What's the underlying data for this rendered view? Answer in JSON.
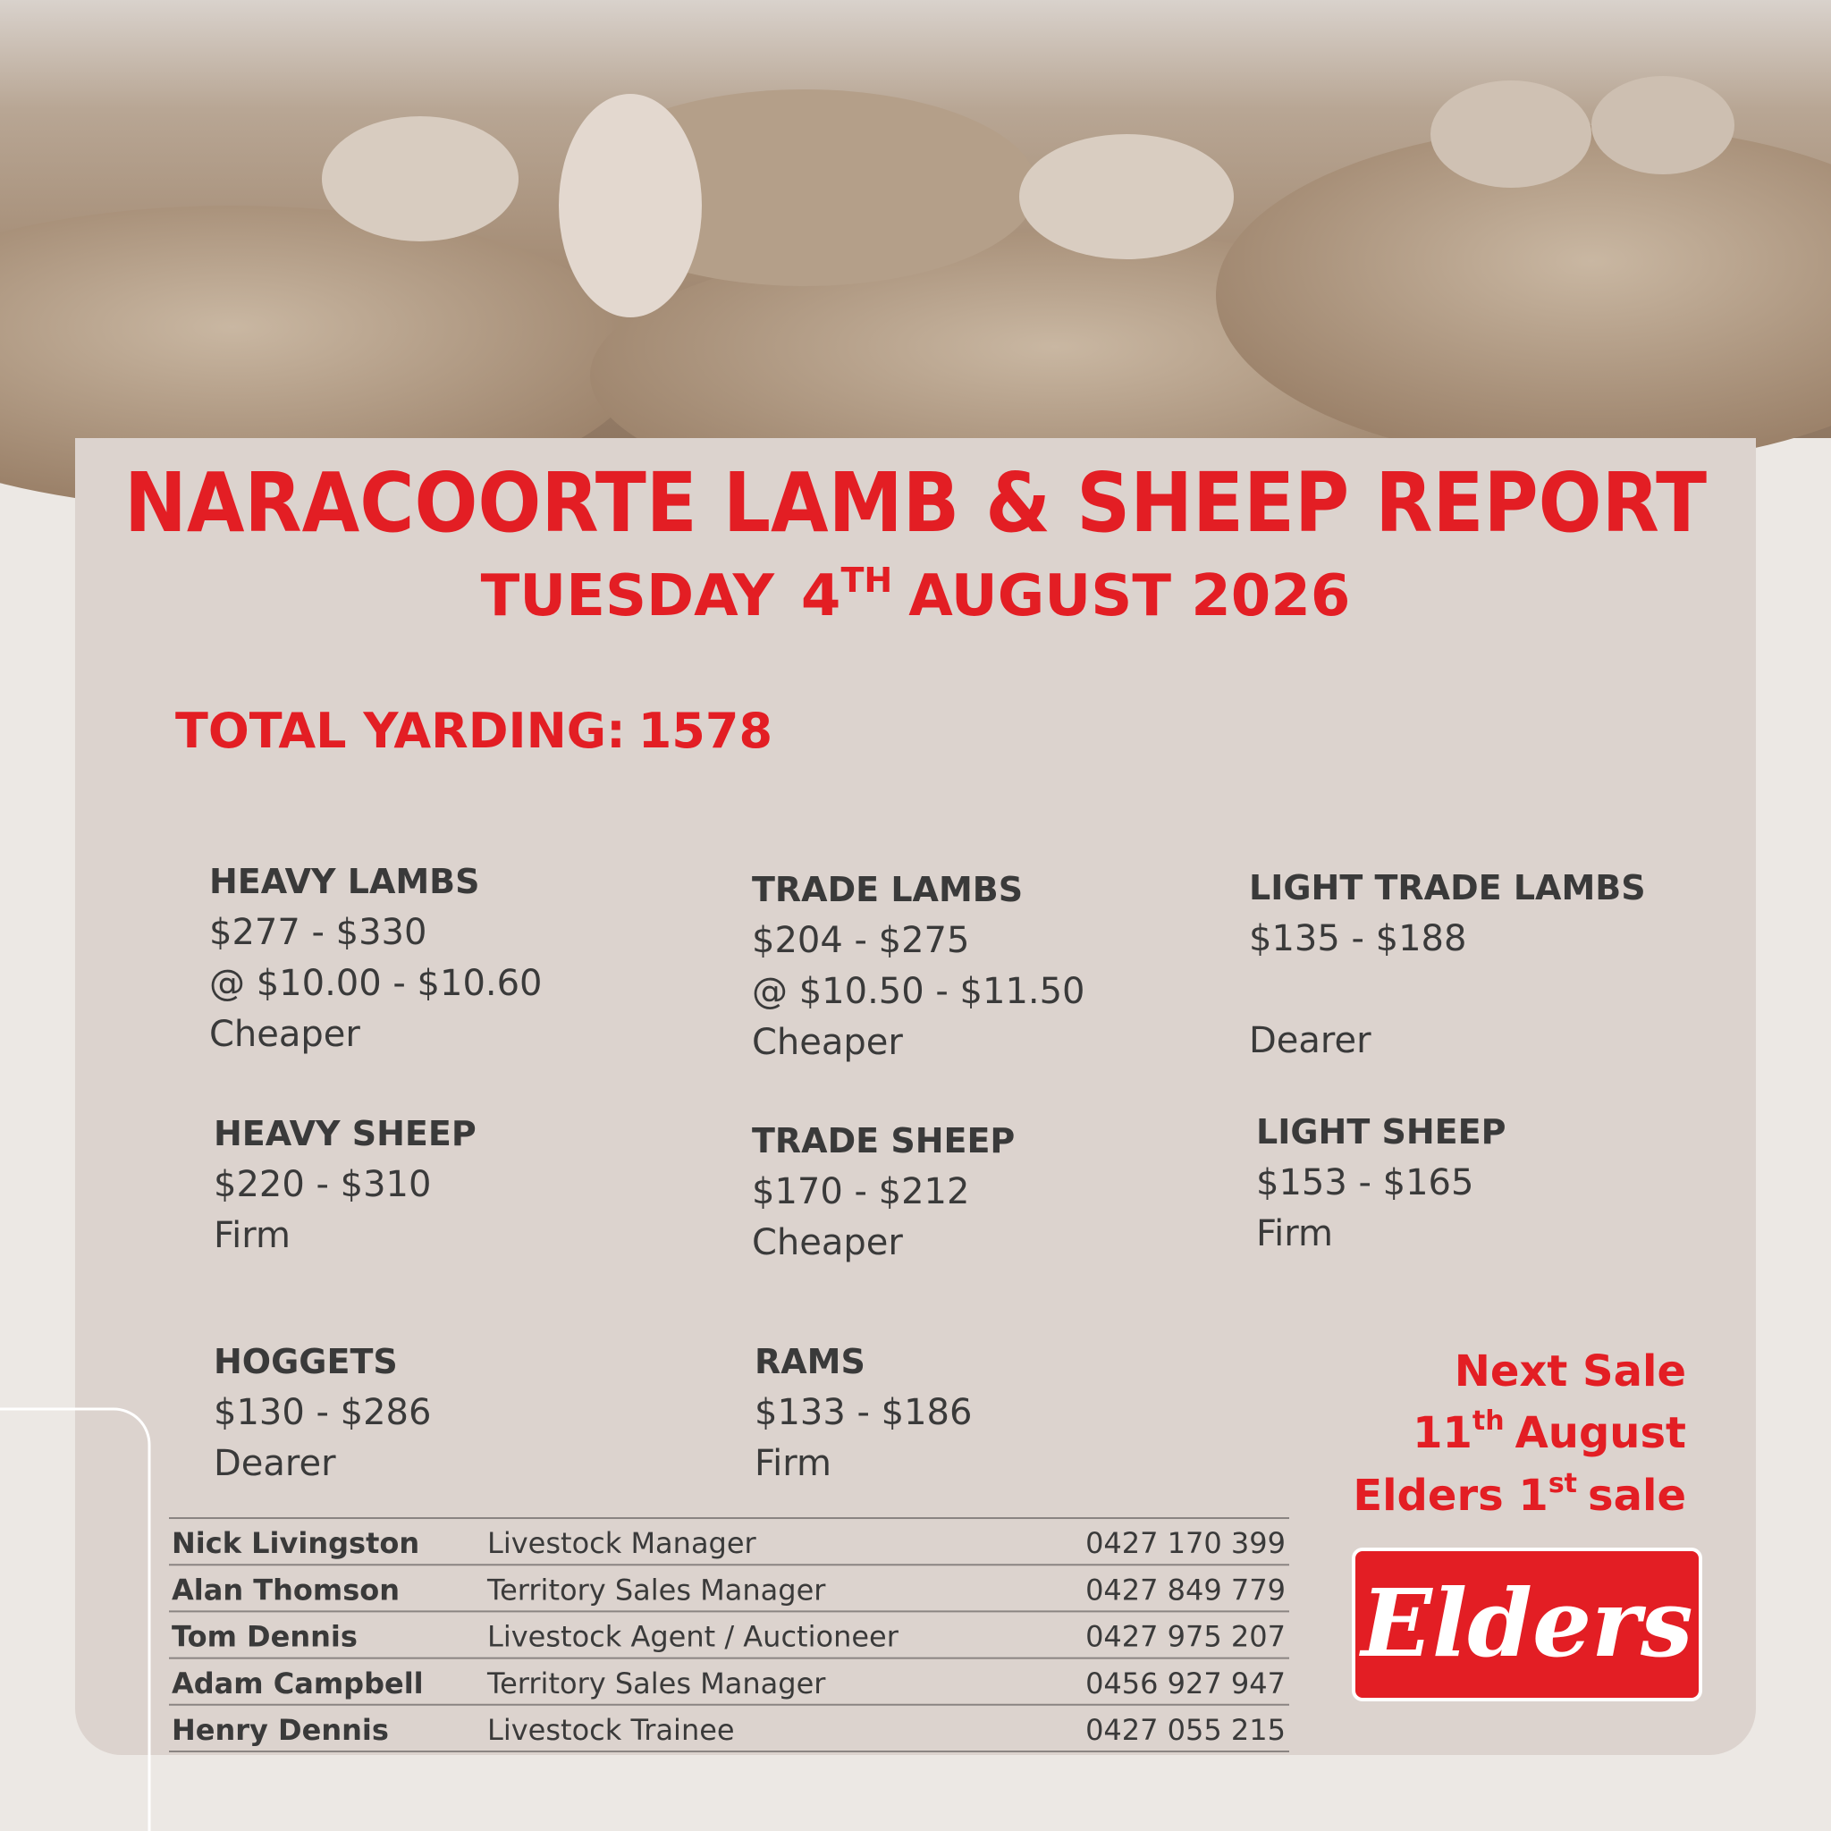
{
  "header": {
    "title": "NARACOORTE LAMB & SHEEP REPORT",
    "date": {
      "day": "TUESDAY",
      "num": "4",
      "suffix": "TH",
      "rest": "AUGUST 2026"
    }
  },
  "total_yarding": {
    "label": "TOTAL YARDING:",
    "value": "1578"
  },
  "categories": [
    {
      "name": "HEAVY LAMBS",
      "price": "$277 - $330",
      "rate": "@ $10.00 - $10.60",
      "trend": "Cheaper"
    },
    {
      "name": "TRADE LAMBS",
      "price": "$204 - $275",
      "rate": "@ $10.50 - $11.50",
      "trend": "Cheaper"
    },
    {
      "name": "LIGHT TRADE LAMBS",
      "price": "$135 - $188",
      "trend": "Dearer"
    },
    {
      "name": "HEAVY SHEEP",
      "price": "$220 - $310",
      "trend": "Firm"
    },
    {
      "name": "TRADE SHEEP",
      "price": "$170 - $212",
      "trend": "Cheaper"
    },
    {
      "name": "LIGHT SHEEP",
      "price": "$153 - $165",
      "trend": "Firm"
    },
    {
      "name": "HOGGETS",
      "price": "$130 - $286",
      "trend": "Dearer"
    },
    {
      "name": "RAMS",
      "price": "$133 - $186",
      "trend": "Firm"
    }
  ],
  "next_sale": {
    "heading": "Next Sale",
    "date": {
      "num": "11",
      "suffix": "th",
      "rest": "August"
    },
    "note": {
      "pre": "Elders 1",
      "suffix": "st",
      "rest": "sale"
    }
  },
  "contacts": [
    [
      "Nick Livingston",
      "Livestock Manager",
      "0427 170 399"
    ],
    [
      "Alan Thomson",
      "Territory Sales Manager",
      "0427 849 779"
    ],
    [
      "Tom Dennis",
      "Livestock Agent / Auctioneer",
      "0427 975 207"
    ],
    [
      "Adam Campbell",
      "Territory Sales Manager",
      "0456 927 947"
    ],
    [
      "Henry Dennis",
      "Livestock Trainee",
      "0427 055 215"
    ]
  ],
  "logo": {
    "text": "Elders"
  }
}
